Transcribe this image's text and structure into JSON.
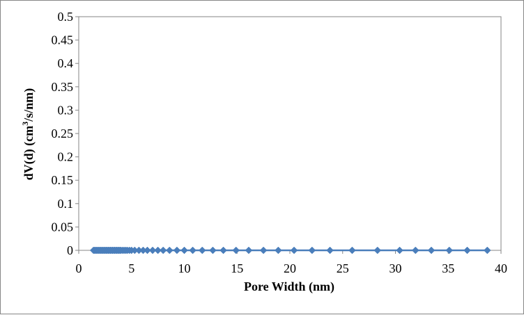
{
  "chart_data": {
    "type": "scatter",
    "xlabel": "Pore Width  (nm)",
    "ylabel_main": "dV(d)  (cm",
    "ylabel_sup": "3",
    "ylabel_tail": "/s/nm)",
    "xlim": [
      0,
      40
    ],
    "ylim": [
      0,
      0.5
    ],
    "x_ticks": [
      0,
      5,
      10,
      15,
      20,
      25,
      30,
      35,
      40
    ],
    "x_tick_labels": [
      "0",
      "5",
      "10",
      "15",
      "20",
      "25",
      "30",
      "35",
      "40"
    ],
    "y_ticks": [
      0,
      0.05,
      0.1,
      0.15,
      0.2,
      0.25,
      0.3,
      0.35,
      0.4,
      0.45,
      0.5
    ],
    "y_tick_labels": [
      "0",
      "0.05",
      "0.1",
      "0.15",
      "0.2",
      "0.25",
      "0.3",
      "0.35",
      "0.4",
      "0.45",
      "0.5"
    ],
    "grid": false,
    "legend": "none",
    "series": [
      {
        "color": "#4a7ebb",
        "marker": "diamond",
        "x": [
          1.4,
          1.5,
          1.6,
          1.7,
          1.8,
          1.9,
          2.0,
          2.1,
          2.2,
          2.3,
          2.4,
          2.5,
          2.6,
          2.7,
          2.8,
          2.9,
          3.0,
          3.1,
          3.2,
          3.3,
          3.4,
          3.5,
          3.6,
          3.7,
          3.8,
          3.9,
          4.0,
          4.15,
          4.3,
          4.45,
          4.6,
          4.8,
          5.0,
          5.3,
          5.7,
          6.1,
          6.5,
          7.0,
          7.5,
          8.0,
          8.6,
          9.3,
          10.0,
          10.8,
          11.7,
          12.7,
          13.7,
          14.9,
          16.1,
          17.5,
          18.9,
          20.4,
          22.1,
          23.8,
          25.9,
          28.3,
          30.4,
          31.9,
          33.4,
          35.1,
          36.8,
          38.7
        ],
        "y": [
          0.0,
          0.0,
          0.0,
          0.0,
          0.0,
          0.0,
          0.0,
          0.0,
          0.0,
          0.0,
          0.0,
          0.0,
          0.0,
          0.0,
          0.0,
          0.0,
          0.0,
          0.0,
          0.0,
          0.0,
          0.0,
          0.0,
          0.0,
          0.0,
          0.0,
          0.0,
          0.0,
          0.0,
          0.0,
          0.0,
          0.0,
          0.0,
          0.0,
          0.0,
          0.0,
          0.0,
          0.0,
          0.0,
          0.0,
          0.0,
          0.0,
          0.0,
          0.0,
          0.0,
          0.0,
          0.0,
          0.0,
          0.0,
          0.0,
          0.0,
          0.0,
          0.0,
          0.0,
          0.0,
          0.0,
          0.0,
          0.0,
          0.0,
          0.0,
          0.0,
          0.0,
          0.0
        ]
      }
    ]
  }
}
